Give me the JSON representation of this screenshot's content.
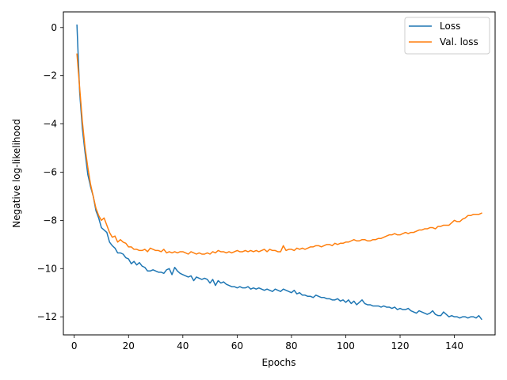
{
  "chart_data": {
    "type": "line",
    "title": "",
    "xlabel": "Epochs",
    "ylabel": "Negative log-likelihood",
    "xlim": [
      -4,
      155
    ],
    "ylim": [
      -12.75,
      0.65
    ],
    "xticks": [
      0,
      20,
      40,
      60,
      80,
      100,
      120,
      140
    ],
    "yticks": [
      0,
      -2,
      -4,
      -6,
      -8,
      -10,
      -12
    ],
    "grid": false,
    "legend_position": "top-right",
    "x": [
      1,
      2,
      3,
      4,
      5,
      6,
      7,
      8,
      9,
      10,
      11,
      12,
      13,
      14,
      15,
      16,
      17,
      18,
      19,
      20,
      21,
      22,
      23,
      24,
      25,
      26,
      27,
      28,
      29,
      30,
      31,
      32,
      33,
      34,
      35,
      36,
      37,
      38,
      39,
      40,
      41,
      42,
      43,
      44,
      45,
      46,
      47,
      48,
      49,
      50,
      51,
      52,
      53,
      54,
      55,
      56,
      57,
      58,
      59,
      60,
      61,
      62,
      63,
      64,
      65,
      66,
      67,
      68,
      69,
      70,
      71,
      72,
      73,
      74,
      75,
      76,
      77,
      78,
      79,
      80,
      81,
      82,
      83,
      84,
      85,
      86,
      87,
      88,
      89,
      90,
      91,
      92,
      93,
      94,
      95,
      96,
      97,
      98,
      99,
      100,
      101,
      102,
      103,
      104,
      105,
      106,
      107,
      108,
      109,
      110,
      111,
      112,
      113,
      114,
      115,
      116,
      117,
      118,
      119,
      120,
      121,
      122,
      123,
      124,
      125,
      126,
      127,
      128,
      129,
      130,
      131,
      132,
      133,
      134,
      135,
      136,
      137,
      138,
      139,
      140,
      141,
      142,
      143,
      144,
      145,
      146,
      147,
      148,
      149,
      150
    ],
    "series": [
      {
        "name": "Loss",
        "color": "#1f77b4",
        "values": [
          0.1,
          -2.7,
          -4.2,
          -5.2,
          -6.1,
          -6.6,
          -7.0,
          -7.6,
          -7.9,
          -8.3,
          -8.4,
          -8.5,
          -8.9,
          -9.05,
          -9.15,
          -9.35,
          -9.35,
          -9.4,
          -9.55,
          -9.6,
          -9.8,
          -9.7,
          -9.85,
          -9.75,
          -9.9,
          -9.95,
          -10.1,
          -10.1,
          -10.05,
          -10.1,
          -10.15,
          -10.15,
          -10.2,
          -10.05,
          -10.0,
          -10.25,
          -9.95,
          -10.1,
          -10.2,
          -10.25,
          -10.3,
          -10.35,
          -10.3,
          -10.5,
          -10.35,
          -10.4,
          -10.45,
          -10.4,
          -10.45,
          -10.6,
          -10.45,
          -10.7,
          -10.5,
          -10.6,
          -10.55,
          -10.65,
          -10.7,
          -10.75,
          -10.75,
          -10.8,
          -10.75,
          -10.8,
          -10.8,
          -10.75,
          -10.85,
          -10.8,
          -10.85,
          -10.8,
          -10.85,
          -10.9,
          -10.85,
          -10.9,
          -10.95,
          -10.85,
          -10.9,
          -10.95,
          -10.85,
          -10.9,
          -10.95,
          -11.0,
          -10.9,
          -11.05,
          -11.0,
          -11.1,
          -11.1,
          -11.15,
          -11.15,
          -11.2,
          -11.1,
          -11.15,
          -11.2,
          -11.2,
          -11.25,
          -11.25,
          -11.3,
          -11.3,
          -11.25,
          -11.35,
          -11.3,
          -11.4,
          -11.3,
          -11.45,
          -11.35,
          -11.5,
          -11.4,
          -11.3,
          -11.45,
          -11.5,
          -11.5,
          -11.55,
          -11.55,
          -11.55,
          -11.6,
          -11.55,
          -11.6,
          -11.6,
          -11.65,
          -11.6,
          -11.7,
          -11.65,
          -11.7,
          -11.7,
          -11.65,
          -11.75,
          -11.8,
          -11.85,
          -11.75,
          -11.8,
          -11.85,
          -11.9,
          -11.85,
          -11.75,
          -11.9,
          -11.95,
          -11.95,
          -11.8,
          -11.9,
          -12.0,
          -11.95,
          -12.0,
          -12.0,
          -12.05,
          -12.0,
          -12.0,
          -12.05,
          -12.0,
          -12.0,
          -12.05,
          -11.95,
          -12.1
        ]
      },
      {
        "name": "Val. loss",
        "color": "#ff7f0e",
        "values": [
          -1.1,
          -2.5,
          -3.9,
          -5.0,
          -5.8,
          -6.5,
          -7.0,
          -7.5,
          -7.8,
          -8.0,
          -7.9,
          -8.2,
          -8.5,
          -8.7,
          -8.65,
          -8.9,
          -8.8,
          -8.9,
          -8.95,
          -9.1,
          -9.1,
          -9.2,
          -9.2,
          -9.25,
          -9.25,
          -9.2,
          -9.3,
          -9.15,
          -9.2,
          -9.25,
          -9.25,
          -9.3,
          -9.2,
          -9.35,
          -9.3,
          -9.35,
          -9.3,
          -9.35,
          -9.3,
          -9.3,
          -9.35,
          -9.4,
          -9.3,
          -9.35,
          -9.4,
          -9.35,
          -9.4,
          -9.4,
          -9.35,
          -9.4,
          -9.3,
          -9.35,
          -9.25,
          -9.3,
          -9.3,
          -9.35,
          -9.3,
          -9.35,
          -9.3,
          -9.25,
          -9.3,
          -9.3,
          -9.25,
          -9.3,
          -9.25,
          -9.3,
          -9.25,
          -9.3,
          -9.25,
          -9.2,
          -9.3,
          -9.2,
          -9.25,
          -9.25,
          -9.3,
          -9.3,
          -9.05,
          -9.25,
          -9.2,
          -9.2,
          -9.25,
          -9.15,
          -9.2,
          -9.15,
          -9.2,
          -9.15,
          -9.1,
          -9.1,
          -9.05,
          -9.05,
          -9.1,
          -9.05,
          -9.0,
          -9.0,
          -9.05,
          -8.95,
          -9.0,
          -8.95,
          -8.95,
          -8.9,
          -8.9,
          -8.85,
          -8.8,
          -8.85,
          -8.85,
          -8.8,
          -8.8,
          -8.85,
          -8.85,
          -8.8,
          -8.8,
          -8.75,
          -8.75,
          -8.7,
          -8.65,
          -8.6,
          -8.6,
          -8.55,
          -8.6,
          -8.6,
          -8.55,
          -8.5,
          -8.55,
          -8.5,
          -8.5,
          -8.45,
          -8.4,
          -8.4,
          -8.35,
          -8.35,
          -8.3,
          -8.3,
          -8.35,
          -8.25,
          -8.25,
          -8.2,
          -8.2,
          -8.2,
          -8.1,
          -8.0,
          -8.05,
          -8.05,
          -7.95,
          -7.9,
          -7.8,
          -7.8,
          -7.75,
          -7.75,
          -7.75,
          -7.7
        ]
      }
    ]
  }
}
